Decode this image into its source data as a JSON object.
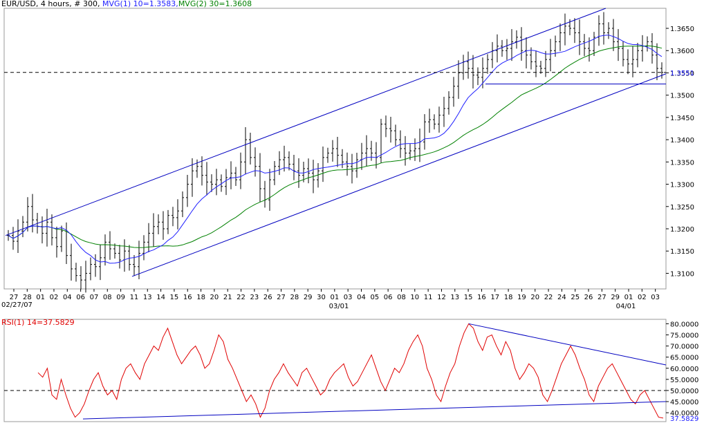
{
  "price_legend": {
    "symbol": "EUR/USD",
    "timeframe": ", 4 hours, # 300,",
    "ma1": "MVG(1) 10=1.3583,",
    "ma2": "MVG(2) 30=1.3608"
  },
  "rsi_legend": "RSI(1) 14=37.5829",
  "start_date": "02/27/07",
  "month_labels": [
    "03/01",
    "04/01"
  ],
  "colors": {
    "bars": "#000000",
    "ma1": "#2020ff",
    "ma2": "#008000",
    "rsi": "#e00000",
    "trend": "#0000c0"
  },
  "chart_data": [
    {
      "type": "ohlc",
      "title": "EUR/USD, 4 hours",
      "x_tick_labels": [
        "27",
        "28",
        "01",
        "02",
        "04",
        "06",
        "07",
        "08",
        "09",
        "11",
        "13",
        "14",
        "15",
        "16",
        "18",
        "20",
        "21",
        "22",
        "23",
        "26",
        "27",
        "28",
        "29",
        "30",
        "01",
        "03",
        "04",
        "05",
        "06",
        "08",
        "10",
        "11",
        "12",
        "13",
        "15",
        "16",
        "17",
        "18",
        "19",
        "20",
        "22",
        "24",
        "25",
        "26",
        "27",
        "29",
        "01",
        "02",
        "03"
      ],
      "y_ticks": [
        "1.3650",
        "1.3600",
        "1.3550",
        "1.3500",
        "1.3450",
        "1.3400",
        "1.3350",
        "1.3300",
        "1.3250",
        "1.3200",
        "1.3150",
        "1.3100"
      ],
      "ylim": [
        1.3065,
        1.3695
      ],
      "last_price_line": 1.3551,
      "last_price_label": "1.3551",
      "series": [
        {
          "name": "MVG(1) 10",
          "value": 1.3583
        },
        {
          "name": "MVG(2) 30",
          "value": 1.3608
        }
      ],
      "closes": [
        1.3185,
        1.3172,
        1.3195,
        1.3215,
        1.325,
        1.322,
        1.3205,
        1.319,
        1.3215,
        1.318,
        1.316,
        1.3195,
        1.314,
        1.311,
        1.3095,
        1.3085,
        1.31,
        1.312,
        1.3115,
        1.3135,
        1.317,
        1.3155,
        1.3145,
        1.313,
        1.315,
        1.312,
        1.3115,
        1.3145,
        1.317,
        1.319,
        1.3205,
        1.3215,
        1.32,
        1.323,
        1.3225,
        1.324,
        1.327,
        1.33,
        1.333,
        1.334,
        1.332,
        1.3305,
        1.33,
        1.331,
        1.3295,
        1.3315,
        1.3325,
        1.331,
        1.335,
        1.34,
        1.336,
        1.334,
        1.329,
        1.3265,
        1.331,
        1.334,
        1.3355,
        1.336,
        1.3345,
        1.333,
        1.332,
        1.3335,
        1.3325,
        1.331,
        1.333,
        1.336,
        1.337,
        1.338,
        1.3365,
        1.335,
        1.334,
        1.333,
        1.3355,
        1.337,
        1.338,
        1.337,
        1.336,
        1.3435,
        1.3425,
        1.342,
        1.34,
        1.338,
        1.337,
        1.3375,
        1.338,
        1.3395,
        1.344,
        1.3445,
        1.3435,
        1.3455,
        1.347,
        1.3495,
        1.352,
        1.355,
        1.3575,
        1.356,
        1.3545,
        1.354,
        1.356,
        1.358,
        1.36,
        1.361,
        1.36,
        1.3605,
        1.362,
        1.363,
        1.36,
        1.359,
        1.3575,
        1.3565,
        1.356,
        1.358,
        1.36,
        1.362,
        1.364,
        1.3655,
        1.365,
        1.364,
        1.362,
        1.3605,
        1.36,
        1.363,
        1.366,
        1.364,
        1.365,
        1.362,
        1.3605,
        1.358,
        1.357,
        1.358,
        1.36,
        1.361,
        1.362,
        1.359,
        1.356,
        1.3551
      ]
    },
    {
      "type": "line",
      "title": "RSI(1) 14",
      "y_ticks": [
        "80.0000",
        "75.0000",
        "70.0000",
        "65.0000",
        "60.0000",
        "55.0000",
        "50.0000",
        "45.0000",
        "40.0000"
      ],
      "ylim": [
        36,
        82
      ],
      "reference_level": 50,
      "last_value_label": "37.5829",
      "series": [
        {
          "name": "RSI(1) 14",
          "values": [
            58,
            56,
            60,
            48,
            46,
            55,
            48,
            42,
            38,
            40,
            44,
            50,
            55,
            58,
            52,
            48,
            50,
            46,
            55,
            60,
            62,
            58,
            55,
            62,
            66,
            70,
            68,
            74,
            78,
            72,
            66,
            62,
            65,
            68,
            70,
            66,
            60,
            62,
            68,
            75,
            72,
            64,
            60,
            55,
            50,
            45,
            48,
            44,
            38,
            42,
            50,
            55,
            58,
            62,
            58,
            55,
            52,
            58,
            60,
            56,
            52,
            48,
            50,
            55,
            58,
            60,
            62,
            56,
            52,
            54,
            58,
            62,
            66,
            60,
            54,
            50,
            55,
            60,
            58,
            62,
            68,
            72,
            75,
            70,
            60,
            55,
            48,
            45,
            52,
            58,
            62,
            70,
            76,
            80,
            78,
            72,
            68,
            74,
            75,
            70,
            66,
            72,
            68,
            60,
            55,
            58,
            62,
            60,
            56,
            48,
            45,
            50,
            56,
            62,
            66,
            70,
            66,
            60,
            55,
            48,
            45,
            52,
            56,
            60,
            62,
            58,
            54,
            50,
            46,
            44,
            48,
            50,
            46,
            42,
            38,
            37.5829
          ]
        }
      ]
    }
  ]
}
